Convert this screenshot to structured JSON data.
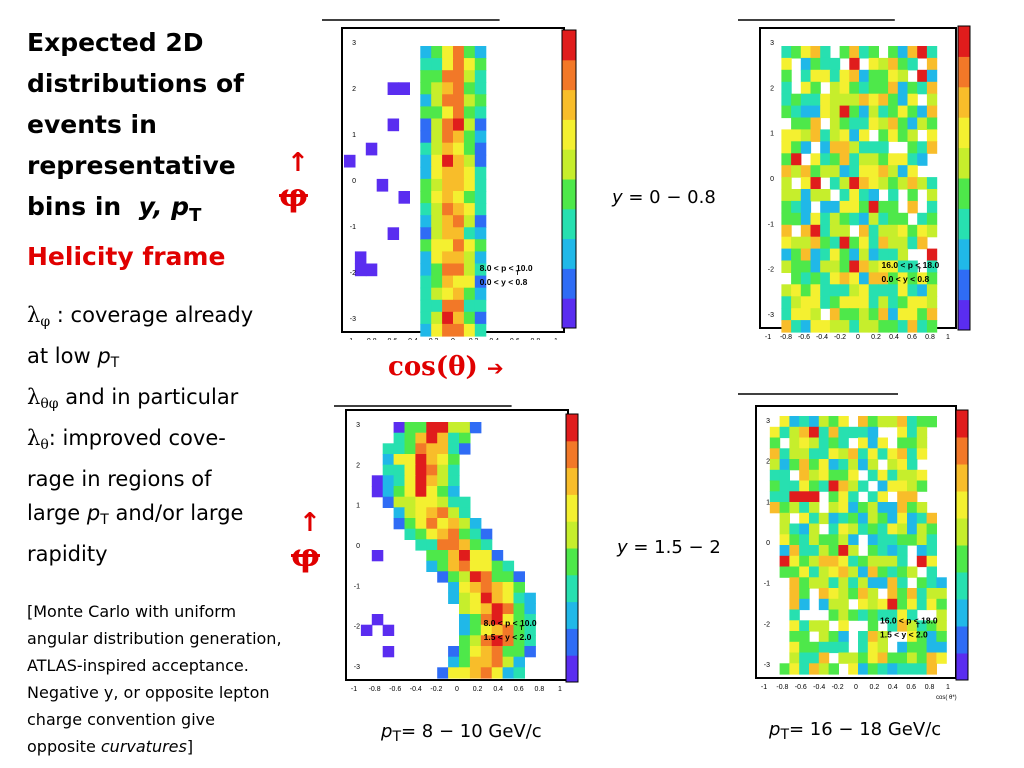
{
  "title": {
    "line1": "Expected 2D",
    "line2": "distributions of",
    "line3": "events in",
    "line4": "representative",
    "line5_pre": "bins in  ",
    "line5_y": "y",
    "line5_mid": ", p",
    "line5_sub": "T",
    "frame": "Helicity frame"
  },
  "notes": {
    "l1_sym": "λ",
    "l1_sub": "φ",
    "l1_text": " : coverage already",
    "l2_text": "at low ",
    "l2_p": "p",
    "l2_sub": "T",
    "l3_sym": "λ",
    "l3_sub": "θφ",
    "l3_text": " and in particular",
    "l4_sym": "λ",
    "l4_sub": "θ",
    "l4_text": ": improved cove-",
    "l5_text": "rage in regions of",
    "l6_text": "large ",
    "l6_p": "p",
    "l6_sub": "T",
    "l6_tail": " and/or large",
    "l7_text": "rapidity"
  },
  "footnote": {
    "l1": "[Monte Carlo with uniform",
    "l2": "angular distribution generation,",
    "l3": "ATLAS-inspired acceptance.",
    "l4": "Negative y, or opposite lepton",
    "l5": "charge convention give",
    "l6_pre": "opposite ",
    "l6_it": "curvatures",
    "l6_post": "]"
  },
  "axes": {
    "phi_symbol": "φ",
    "up_arrow": "↑",
    "cos_label": "cos(θ)",
    "right_arrow": "➔"
  },
  "labels": {
    "y_top_pre": "y",
    "y_top_range": " = 0 − 0.8",
    "y_bot_pre": "y",
    "y_bot_range": " = 1.5 − 2",
    "pt_left_p": "p",
    "pt_left_sub": "T",
    "pt_left_range": "= 8 − 10 GeV/c",
    "pt_right_p": "p",
    "pt_right_sub": "T",
    "pt_right_range": "= 16 − 18 GeV/c"
  },
  "colors": {
    "accent_red": "#e00000",
    "palette": [
      "#5a2df0",
      "#2f6cf5",
      "#20b8e8",
      "#27e0b0",
      "#4ee84a",
      "#c6ee2c",
      "#f4f030",
      "#f8bd2a",
      "#f27828",
      "#e01c1c"
    ]
  },
  "plots": [
    {
      "id": "pt8-10_y0-0.8",
      "box_lines": [
        "8.0 < p  < 10.0",
        "0.0 < y < 0.8"
      ],
      "box_sub": "T",
      "xticks": [
        "-1",
        "-0.8",
        "-0.6",
        "-0.4",
        "-0.2",
        "0",
        "0.2",
        "0.4",
        "0.6",
        "0.8",
        "1"
      ],
      "yticks": [
        "3",
        "2",
        "1",
        "0",
        "-1",
        "-2",
        "-3"
      ],
      "xtitle": "cos( θ*)",
      "shape": "vertical-band",
      "band_center": 0.0,
      "band_halfwidth": 0.28
    },
    {
      "id": "pt16-18_y0-0.8",
      "box_lines": [
        "16.0 < p  < 18.0",
        "0.0 < y < 0.8"
      ],
      "box_sub": "T",
      "xticks": [
        "-1",
        "-0.8",
        "-0.6",
        "-0.4",
        "-0.2",
        "0",
        "0.2",
        "0.4",
        "0.6",
        "0.8",
        "1"
      ],
      "yticks": [
        "3",
        "2",
        "1",
        "0",
        "-1",
        "-2",
        "-3"
      ],
      "xtitle": "cos( θ*)",
      "shape": "wide-sparse",
      "band_center": 0.0,
      "band_halfwidth": 0.85
    },
    {
      "id": "pt8-10_y1.5-2.0",
      "box_lines": [
        "8.0 < p  < 10.0",
        "1.5 < y < 2.0"
      ],
      "box_sub": "T",
      "xticks": [
        "-1",
        "-0.8",
        "-0.6",
        "-0.4",
        "-0.2",
        "0",
        "0.2",
        "0.4",
        "0.6",
        "0.8",
        "1"
      ],
      "yticks": [
        "3",
        "2",
        "1",
        "0",
        "-1",
        "-2",
        "-3"
      ],
      "xtitle": "",
      "shape": "curved-band",
      "band_center": 0.0,
      "band_halfwidth": 0.38
    },
    {
      "id": "pt16-18_y1.5-2.0",
      "box_lines": [
        "16.0 < p  < 18.0",
        "1.5 < y < 2.0"
      ],
      "box_sub": "T",
      "xticks": [
        "-1",
        "-0.8",
        "-0.6",
        "-0.4",
        "-0.2",
        "0",
        "0.2",
        "0.4",
        "0.6",
        "0.8",
        "1"
      ],
      "yticks": [
        "3",
        "2",
        "1",
        "0",
        "-1",
        "-2",
        "-3"
      ],
      "xtitle": "cos( θ*)",
      "shape": "wide-sparse-curved",
      "band_center": 0.0,
      "band_halfwidth": 0.8
    }
  ]
}
